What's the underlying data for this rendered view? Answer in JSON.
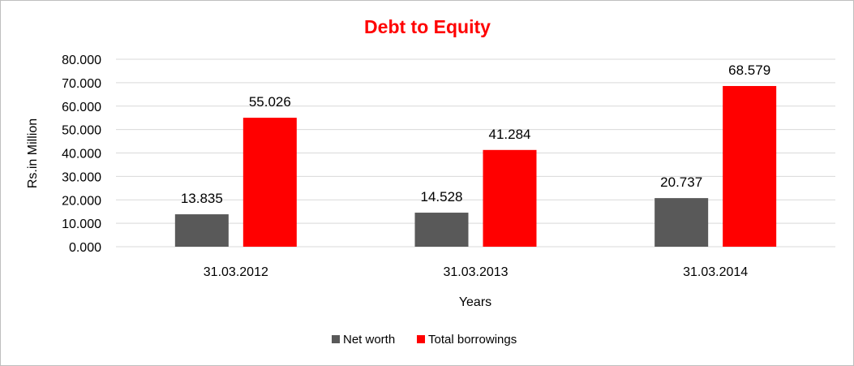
{
  "chart_data": {
    "type": "bar",
    "title": "Debt to Equity",
    "xlabel": "Years",
    "ylabel": "Rs.in Million",
    "categories": [
      "31.03.2012",
      "31.03.2013",
      "31.03.2014"
    ],
    "series": [
      {
        "name": "Net worth",
        "values": [
          13.835,
          14.528,
          20.737
        ],
        "labels": [
          "13.835",
          "14.528",
          "20.737"
        ],
        "color": "#595959"
      },
      {
        "name": "Total borrowings",
        "values": [
          55.026,
          41.284,
          68.579
        ],
        "labels": [
          "55.026",
          "41.284",
          "68.579"
        ],
        "color": "#ff0000"
      }
    ],
    "ylim": [
      0,
      80
    ],
    "yticks": [
      0,
      10,
      20,
      30,
      40,
      50,
      60,
      70,
      80
    ],
    "ytick_labels": [
      "0.000",
      "10.000",
      "20.000",
      "30.000",
      "40.000",
      "50.000",
      "60.000",
      "70.000",
      "80.000"
    ],
    "grid": true,
    "legend_position": "bottom",
    "title_color": "#ff0000",
    "grid_color": "#d9d9d9"
  }
}
